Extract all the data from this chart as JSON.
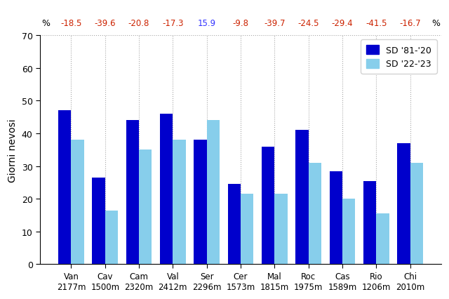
{
  "categories": [
    "Van\n2177m",
    "Cav\n1500m",
    "Cam\n2320m",
    "Val\n2412m",
    "Ser\n2296m",
    "Cer\n1573m",
    "Mal\n1815m",
    "Roc\n1975m",
    "Cas\n1589m",
    "Rio\n1206m",
    "Chi\n2010m"
  ],
  "sd8120": [
    47,
    26.5,
    44,
    46,
    38,
    24.5,
    36,
    41,
    28.5,
    25.5,
    37
  ],
  "sd2223": [
    38,
    16.5,
    35,
    38,
    44,
    21.5,
    21.5,
    31,
    20,
    15.5,
    31
  ],
  "percentages": [
    "-18.5",
    "-39.6",
    "-20.8",
    "-17.3",
    "15.9",
    "-9.8",
    "-39.7",
    "-24.5",
    "-29.4",
    "-41.5",
    "-16.7"
  ],
  "pct_positive_idx": [
    4
  ],
  "color_dark_blue": "#0000CC",
  "color_light_blue": "#87CEEB",
  "color_red": "#CC2200",
  "color_blue_pct": "#3333FF",
  "ylabel": "Giorni nevosi",
  "ylim": [
    0,
    70
  ],
  "yticks": [
    0,
    10,
    20,
    30,
    40,
    50,
    60,
    70
  ],
  "legend_label1": "SD '81-'20",
  "legend_label2": "SD '22-'23",
  "bar_width": 0.38
}
